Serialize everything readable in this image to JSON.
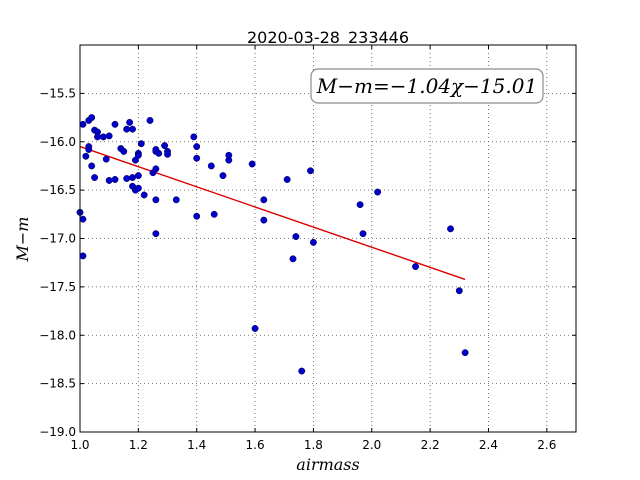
{
  "chart_data": {
    "type": "scatter",
    "title": "2020-03-28_233446",
    "xlabel": "airmass",
    "ylabel": "M−m",
    "xlim": [
      1.0,
      2.7
    ],
    "ylim": [
      -19.0,
      -15.0
    ],
    "xticks": [
      "1.0",
      "1.2",
      "1.4",
      "1.6",
      "1.8",
      "2.0",
      "2.2",
      "2.4",
      "2.6"
    ],
    "yticks": [
      "−15.5",
      "−16.0",
      "−16.5",
      "−17.0",
      "−17.5",
      "−18.0",
      "−18.5",
      "−19.0"
    ],
    "grid": true,
    "annotation": "M−m=−1.04χ−15.01",
    "fit": {
      "slope": -1.04,
      "intercept": -15.01,
      "x_range": [
        1.0,
        2.32
      ],
      "color": "#e00000"
    },
    "point_color": "#0000c8",
    "points": [
      {
        "x": 1.0,
        "y": -16.73
      },
      {
        "x": 1.01,
        "y": -16.8
      },
      {
        "x": 1.01,
        "y": -17.18
      },
      {
        "x": 1.01,
        "y": -15.82
      },
      {
        "x": 1.02,
        "y": -16.15
      },
      {
        "x": 1.03,
        "y": -16.05
      },
      {
        "x": 1.03,
        "y": -16.08
      },
      {
        "x": 1.03,
        "y": -15.78
      },
      {
        "x": 1.04,
        "y": -16.25
      },
      {
        "x": 1.04,
        "y": -15.75
      },
      {
        "x": 1.05,
        "y": -15.88
      },
      {
        "x": 1.05,
        "y": -16.37
      },
      {
        "x": 1.06,
        "y": -15.9
      },
      {
        "x": 1.06,
        "y": -15.95
      },
      {
        "x": 1.08,
        "y": -15.95
      },
      {
        "x": 1.09,
        "y": -16.18
      },
      {
        "x": 1.1,
        "y": -16.4
      },
      {
        "x": 1.1,
        "y": -15.94
      },
      {
        "x": 1.12,
        "y": -16.39
      },
      {
        "x": 1.12,
        "y": -15.82
      },
      {
        "x": 1.14,
        "y": -16.07
      },
      {
        "x": 1.15,
        "y": -16.1
      },
      {
        "x": 1.16,
        "y": -16.38
      },
      {
        "x": 1.16,
        "y": -15.87
      },
      {
        "x": 1.17,
        "y": -15.8
      },
      {
        "x": 1.18,
        "y": -16.46
      },
      {
        "x": 1.18,
        "y": -15.87
      },
      {
        "x": 1.18,
        "y": -16.37
      },
      {
        "x": 1.19,
        "y": -16.5
      },
      {
        "x": 1.19,
        "y": -16.19
      },
      {
        "x": 1.2,
        "y": -16.12
      },
      {
        "x": 1.2,
        "y": -16.48
      },
      {
        "x": 1.2,
        "y": -16.35
      },
      {
        "x": 1.2,
        "y": -16.14
      },
      {
        "x": 1.21,
        "y": -16.02
      },
      {
        "x": 1.22,
        "y": -16.55
      },
      {
        "x": 1.24,
        "y": -15.78
      },
      {
        "x": 1.25,
        "y": -16.32
      },
      {
        "x": 1.26,
        "y": -16.28
      },
      {
        "x": 1.26,
        "y": -16.95
      },
      {
        "x": 1.26,
        "y": -16.1
      },
      {
        "x": 1.26,
        "y": -16.08
      },
      {
        "x": 1.26,
        "y": -16.6
      },
      {
        "x": 1.27,
        "y": -16.12
      },
      {
        "x": 1.29,
        "y": -16.04
      },
      {
        "x": 1.3,
        "y": -16.1
      },
      {
        "x": 1.3,
        "y": -16.13
      },
      {
        "x": 1.33,
        "y": -16.6
      },
      {
        "x": 1.39,
        "y": -15.95
      },
      {
        "x": 1.4,
        "y": -16.05
      },
      {
        "x": 1.4,
        "y": -16.17
      },
      {
        "x": 1.4,
        "y": -16.77
      },
      {
        "x": 1.45,
        "y": -16.25
      },
      {
        "x": 1.46,
        "y": -16.75
      },
      {
        "x": 1.49,
        "y": -16.35
      },
      {
        "x": 1.51,
        "y": -16.19
      },
      {
        "x": 1.51,
        "y": -16.14
      },
      {
        "x": 1.59,
        "y": -16.23
      },
      {
        "x": 1.6,
        "y": -17.93
      },
      {
        "x": 1.63,
        "y": -16.6
      },
      {
        "x": 1.63,
        "y": -16.81
      },
      {
        "x": 1.71,
        "y": -16.39
      },
      {
        "x": 1.73,
        "y": -17.21
      },
      {
        "x": 1.74,
        "y": -16.98
      },
      {
        "x": 1.76,
        "y": -18.37
      },
      {
        "x": 1.79,
        "y": -16.3
      },
      {
        "x": 1.8,
        "y": -17.04
      },
      {
        "x": 1.96,
        "y": -16.65
      },
      {
        "x": 1.97,
        "y": -16.95
      },
      {
        "x": 2.02,
        "y": -16.52
      },
      {
        "x": 2.15,
        "y": -17.29
      },
      {
        "x": 2.27,
        "y": -16.9
      },
      {
        "x": 2.3,
        "y": -17.54
      },
      {
        "x": 2.32,
        "y": -18.18
      }
    ]
  }
}
